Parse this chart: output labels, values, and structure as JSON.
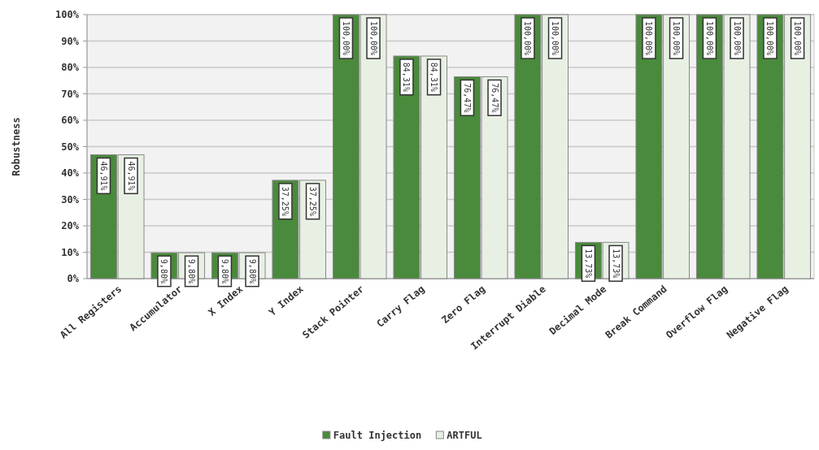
{
  "chart_data": {
    "type": "bar",
    "ylabel": "Robustness",
    "categories": [
      "All Registers",
      "Accumulator",
      "X Index",
      "Y Index",
      "Stack Pointer",
      "Carry Flag",
      "Zero Flag",
      "Interrupt Diable",
      "Decimal Mode",
      "Break Command",
      "Overflow Flag",
      "Negative Flag"
    ],
    "series": [
      {
        "name": "Fault Injection",
        "color": "#4a8a3c",
        "values": [
          46.91,
          9.8,
          9.8,
          37.25,
          100,
          84.31,
          76.47,
          100,
          13.73,
          100,
          100,
          100
        ],
        "value_labels": [
          "46,91%",
          "9,80%",
          "9,80%",
          "37,25%",
          "100,00%",
          "84,31%",
          "76,47%",
          "100,00%",
          "13,73%",
          "100,00%",
          "100,00%",
          "100,00%"
        ]
      },
      {
        "name": "ARTFUL",
        "color": "#e8f0e4",
        "values": [
          46.91,
          9.8,
          9.8,
          37.25,
          100,
          84.31,
          76.47,
          100,
          13.73,
          100,
          100,
          100
        ],
        "value_labels": [
          "46,91%",
          "9,80%",
          "9,80%",
          "37,25%",
          "100,00%",
          "84,31%",
          "76,47%",
          "100,00%",
          "13,73%",
          "100,00%",
          "100,00%",
          "100,00%"
        ]
      }
    ],
    "ylim": [
      0,
      100
    ],
    "yticks": [
      {
        "value": 0,
        "label": "0%"
      },
      {
        "value": 10,
        "label": "10%"
      },
      {
        "value": 20,
        "label": "20%"
      },
      {
        "value": 30,
        "label": "30%"
      },
      {
        "value": 40,
        "label": "40%"
      },
      {
        "value": 50,
        "label": "50%"
      },
      {
        "value": 60,
        "label": "60%"
      },
      {
        "value": 70,
        "label": "70%"
      },
      {
        "value": 80,
        "label": "80%"
      },
      {
        "value": 90,
        "label": "90%"
      },
      {
        "value": 100,
        "label": "100%"
      }
    ],
    "grid": "y",
    "legend": "bottom"
  }
}
